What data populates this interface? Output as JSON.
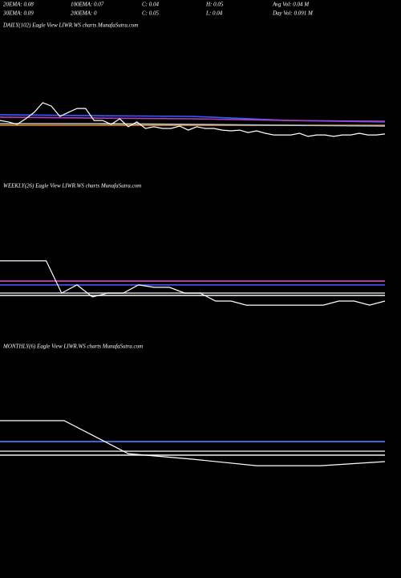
{
  "header": {
    "row1": [
      "20EMA: 0.08",
      "100EMA: 0.07",
      "C: 0.04",
      "H: 0.05",
      "Avg Vol: 0.04  M"
    ],
    "row2": [
      "30EMA: 0.09",
      "200EMA: 0",
      "C: 0.05",
      "L: 0.04",
      "Day Vol: 0.091 M"
    ]
  },
  "chart_data": [
    {
      "type": "line",
      "title": "DAILY(102) Eagle   View  LIWR.WS charts MunafaSutra.com",
      "ylim": [
        0.03,
        0.09
      ],
      "series": [
        {
          "color": "#3b5bff",
          "values": [
            0.0557,
            0.0553,
            0.055,
            0.0533,
            0.0527
          ]
        },
        {
          "color": "#b040c0",
          "values": [
            0.0547,
            0.0543,
            0.054,
            0.0533,
            0.053
          ]
        },
        {
          "color": "#d08020",
          "values": [
            0.0513,
            0.0513,
            0.0513,
            0.0513,
            0.0513
          ]
        },
        {
          "color": "#c0c0c0",
          "values": [
            0.052,
            0.052,
            0.0517,
            0.0513,
            0.051
          ]
        },
        {
          "color": "#ffffff",
          "values": [
            0.0533,
            0.0527,
            0.0517,
            0.054,
            0.0567,
            0.0607,
            0.0593,
            0.055,
            0.0567,
            0.0583,
            0.0583,
            0.0533,
            0.0533,
            0.0517,
            0.054,
            0.0507,
            0.0527,
            0.05,
            0.0507,
            0.05,
            0.05,
            0.051,
            0.0493,
            0.0507,
            0.05,
            0.05,
            0.0493,
            0.049,
            0.0493,
            0.0483,
            0.049,
            0.048,
            0.0473,
            0.0473,
            0.0473,
            0.048,
            0.0467,
            0.0473,
            0.0473,
            0.0467,
            0.0473,
            0.0473,
            0.048,
            0.0473,
            0.0473,
            0.0477
          ]
        }
      ]
    },
    {
      "type": "line",
      "title": "WEEKLY(26) Eagle   View  LIWR.WS charts MunafaSutra.com",
      "ylim": [
        0.03,
        0.09
      ],
      "series": [
        {
          "color": "#e040c0",
          "values": [
            0.0533,
            0.0533,
            0.0533
          ]
        },
        {
          "color": "#3b5bff",
          "values": [
            0.0517,
            0.0517,
            0.0517
          ]
        },
        {
          "color": "#c0c0c0",
          "values": [
            0.0483,
            0.0483,
            0.0483
          ]
        },
        {
          "color": "#e0e0e0",
          "values": [
            0.0473,
            0.0473,
            0.0473
          ]
        },
        {
          "color": "#ffffff",
          "values": [
            0.0617,
            0.0617,
            0.0617,
            0.0617,
            0.0483,
            0.0517,
            0.0467,
            0.0483,
            0.0483,
            0.0517,
            0.0507,
            0.0507,
            0.0483,
            0.0483,
            0.045,
            0.045,
            0.0433,
            0.0433,
            0.0433,
            0.0433,
            0.0433,
            0.0433,
            0.045,
            0.045,
            0.0433,
            0.045
          ]
        }
      ]
    },
    {
      "type": "line",
      "title": "MONTHLY(6) Eagle   View  LIWR.WS charts MunafaSutra.com",
      "ylim": [
        0.03,
        0.09
      ],
      "series": [
        {
          "color": "#4a80ff",
          "values": [
            0.0533,
            0.0533,
            0.0533
          ]
        },
        {
          "color": "#c0c0c0",
          "values": [
            0.0493,
            0.0493,
            0.0493
          ]
        },
        {
          "color": "#e0e0e0",
          "values": [
            0.0477,
            0.0477,
            0.0477
          ]
        },
        {
          "color": "#ffffff",
          "values": [
            0.062,
            0.062,
            0.0483,
            0.046,
            0.0433,
            0.0433,
            0.045
          ]
        }
      ]
    }
  ]
}
